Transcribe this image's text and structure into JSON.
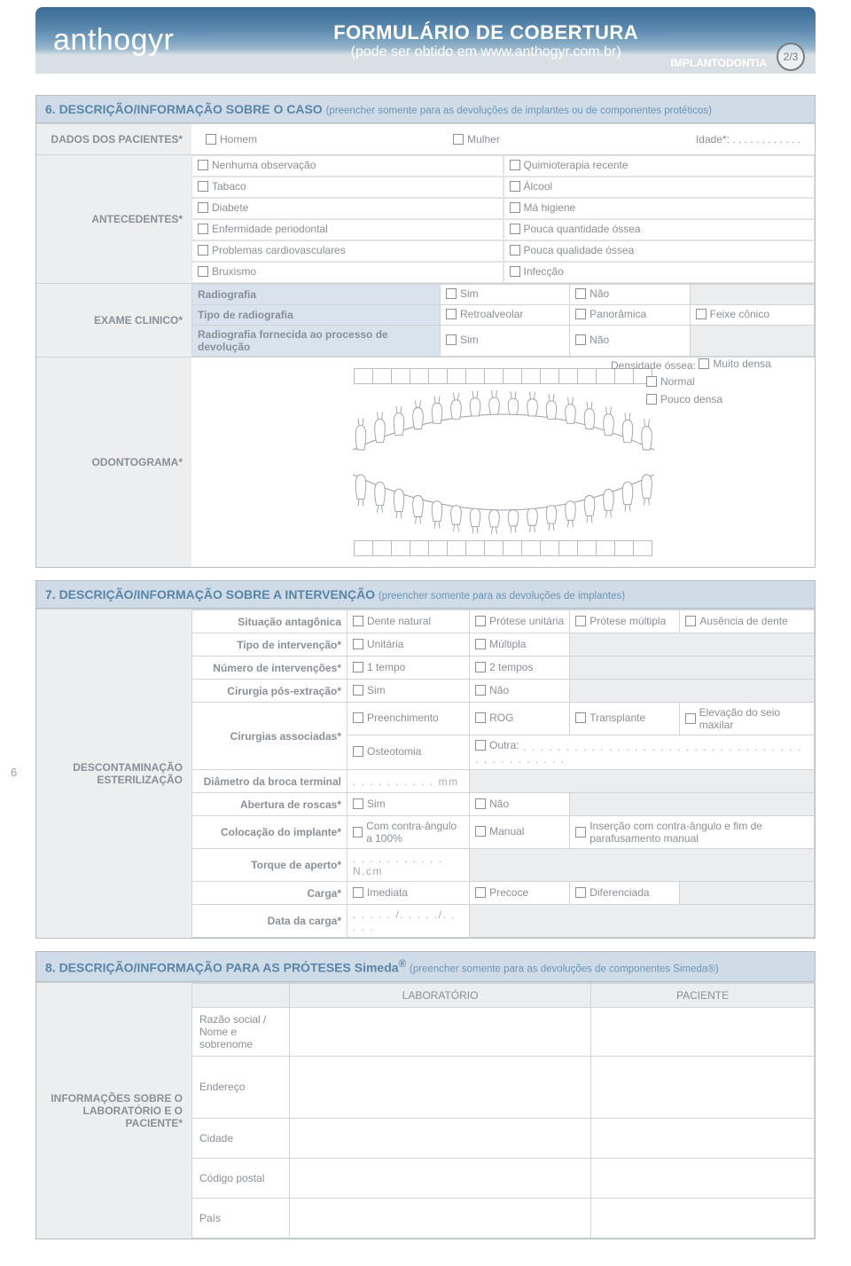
{
  "header": {
    "brand": "anthogyr",
    "title": "FORMULÁRIO DE COBERTURA",
    "subtitle": "(pode ser obtido em www.anthogyr.com.br)",
    "corner": "IMPLANTODONTIA",
    "page": "2/3"
  },
  "page_side_num": "6",
  "s6": {
    "title": "6. DESCRIÇÃO/INFORMAÇÃO SOBRE O CASO",
    "sub": "(preencher somente para as devoluções de implantes ou de componentes protéticos)",
    "dados_label": "DADOS DOS PACIENTES*",
    "homem": "Homem",
    "mulher": "Mulher",
    "idade": "Idade*: . . . . . . . . . . . .",
    "ant_label": "ANTECEDENTES*",
    "ant_left": [
      "Nenhuma observação",
      "Tabaco",
      "Diabete",
      "Enfermidade periodontal",
      "Problemas cardiovasculares",
      "Bruxismo"
    ],
    "ant_right": [
      "Quimioterapia recente",
      "Álcool",
      "Má higiene",
      "Pouca quantidade óssea",
      "Pouca qualidade óssea",
      "Infecção"
    ],
    "exame_label": "EXAME CLINICO*",
    "exame": {
      "r1": "Radiografia",
      "r1a": "Sim",
      "r1b": "Não",
      "r2": "Tipo de radiografia",
      "r2a": "Retroalveolar",
      "r2b": "Panorâmica",
      "r2c": "Feixe cônico",
      "r3": "Radiografia fornecida ao processo de devolução",
      "r3a": "Sim",
      "r3b": "Não"
    },
    "odonto_label": "ODONTOGRAMA*",
    "density_label": "Densidade óssea:",
    "d1": "Muito densa",
    "d2": "Normal",
    "d3": "Pouco densa"
  },
  "s7": {
    "title": "7. DESCRIÇÃO/INFORMAÇÃO SOBRE A INTERVENÇÃO",
    "sub": "(preencher somente para as devoluções de implantes)",
    "left_label1": "DESCONTAMINAÇÃO",
    "left_label2": "ESTERILIZAÇÃO",
    "rows": {
      "situacao": {
        "lbl": "Situação antagônica",
        "o": [
          "Dente natural",
          "Prótese unitária",
          "Prótese múltipla",
          "Ausência de dente"
        ]
      },
      "tipo": {
        "lbl": "Tipo de intervenção*",
        "o": [
          "Unitária",
          "Múltipla"
        ]
      },
      "num": {
        "lbl": "Número de intervenções*",
        "o": [
          "1 tempo",
          "2 tempos"
        ]
      },
      "cir_pos": {
        "lbl": "Cirurgia pós-extração*",
        "o": [
          "Sim",
          "Não"
        ]
      },
      "cir_assoc": {
        "lbl": "Cirurgias associadas*",
        "l1": [
          "Preenchimento",
          "ROG",
          "Transplante",
          "Elevação do seio maxilar"
        ],
        "l2a": "Osteotomia",
        "l2b": "Outra:"
      },
      "diam": {
        "lbl": "Diâmetro da broca terminal",
        "v": ". . . . . . . . . . mm"
      },
      "abert": {
        "lbl": "Abertura de roscas*",
        "o": [
          "Sim",
          "Não"
        ]
      },
      "coloc": {
        "lbl": "Colocação do implante*",
        "o": [
          "Com contra-ângulo a 100%",
          "Manual",
          "Inserção com contra-ângulo e fim de parafusamento manual"
        ]
      },
      "torque": {
        "lbl": "Torque de aperto*",
        "v": ". . . . . . . . . . . N.cm"
      },
      "carga": {
        "lbl": "Carga*",
        "o": [
          "Imediata",
          "Precoce",
          "Diferenciada"
        ]
      },
      "data": {
        "lbl": "Data da carga*",
        "v": ". . . . . /. . . . ./. . . . ."
      }
    }
  },
  "s8": {
    "title_a": "8. DESCRIÇÃO/INFORMAÇÃO PARA AS PRÓTESES Simeda",
    "title_sup": "®",
    "sub": "(preencher somente para as devoluções de componentes Simeda®)",
    "left1": "INFORMAÇÕES SOBRE O LABORATÓRIO E O PACIENTE*",
    "col_lab": "LABORATÓRIO",
    "col_pac": "PACIENTE",
    "rows": [
      "Razão social / Nome e sobrenome",
      "Endereço",
      "Cidade",
      "Código postal",
      "País"
    ]
  },
  "colors": {
    "header_grad_top": "#3a6a96",
    "section_head_bg": "#cfdce8",
    "section_head_fg": "#5a85a7",
    "line": "#d2d5d8",
    "text": "#8a9097"
  }
}
